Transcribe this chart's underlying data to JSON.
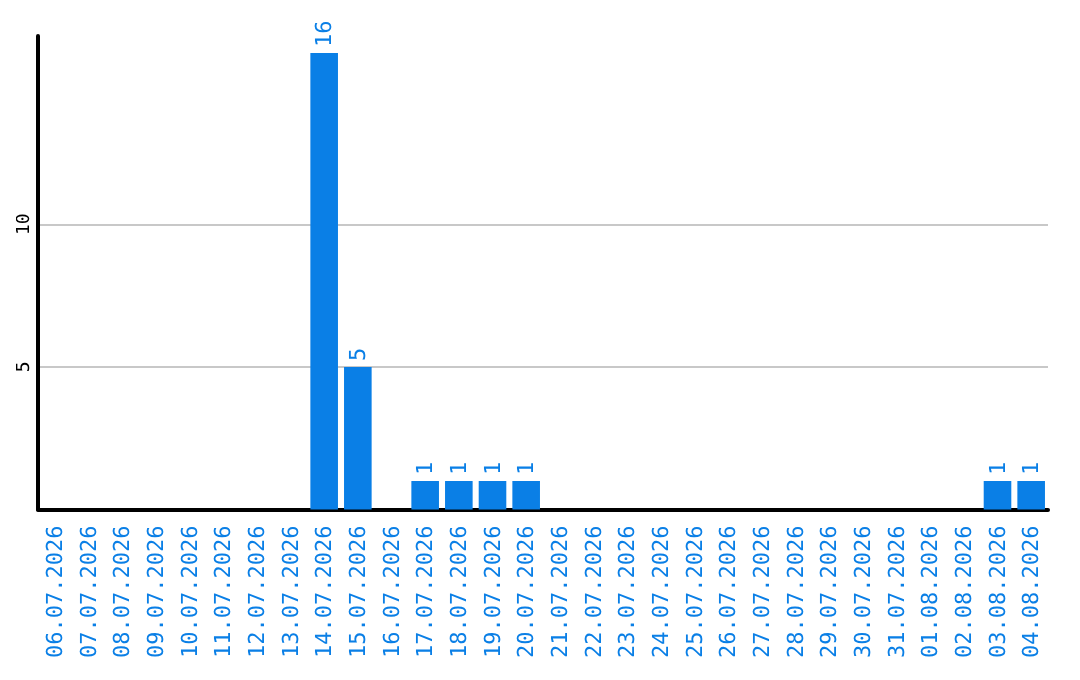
{
  "chart_data": {
    "type": "bar",
    "categories": [
      "06.07.2026",
      "07.07.2026",
      "08.07.2026",
      "09.07.2026",
      "10.07.2026",
      "11.07.2026",
      "12.07.2026",
      "13.07.2026",
      "14.07.2026",
      "15.07.2026",
      "16.07.2026",
      "17.07.2026",
      "18.07.2026",
      "19.07.2026",
      "20.07.2026",
      "21.07.2026",
      "22.07.2026",
      "23.07.2026",
      "24.07.2026",
      "25.07.2026",
      "26.07.2026",
      "27.07.2026",
      "28.07.2026",
      "29.07.2026",
      "30.07.2026",
      "31.07.2026",
      "01.08.2026",
      "02.08.2026",
      "03.08.2026",
      "04.08.2026"
    ],
    "values": [
      0,
      0,
      0,
      0,
      0,
      0,
      0,
      0,
      16,
      5,
      0,
      1,
      1,
      1,
      1,
      0,
      0,
      0,
      0,
      0,
      0,
      0,
      0,
      0,
      0,
      0,
      0,
      0,
      1,
      1
    ],
    "value_labels": [
      null,
      null,
      null,
      null,
      null,
      null,
      null,
      null,
      "16",
      "5",
      null,
      "1",
      "1",
      "1",
      "1",
      null,
      null,
      null,
      null,
      null,
      null,
      null,
      null,
      null,
      null,
      null,
      null,
      null,
      "1",
      "1"
    ],
    "color": "#0a7fe6",
    "ylim": [
      0,
      16.6
    ],
    "yticks": [
      5,
      10
    ],
    "grid": "y"
  }
}
